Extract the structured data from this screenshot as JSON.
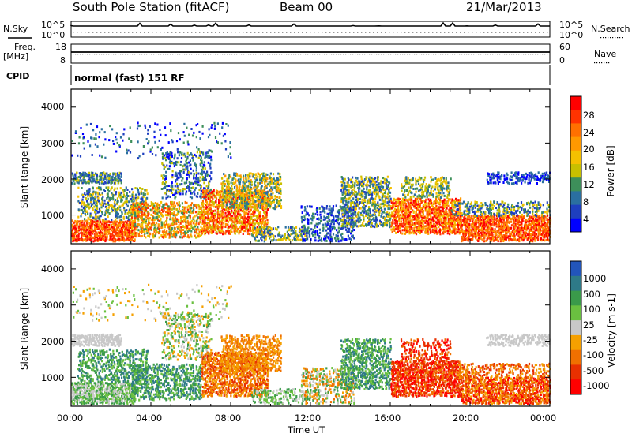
{
  "header": {
    "station": "South Pole Station (fitACF)",
    "beam": "Beam 00",
    "date": "21/Mar/2013"
  },
  "aux": {
    "nsky_label": "N.Sky",
    "nsearch_label": "N.Search",
    "freq_label": "Freq.",
    "freq_unit": "[MHz]",
    "nave_label": "Nave",
    "cpid_label": "CPID",
    "cpid_value": "normal (fast) 151 RF",
    "noise_ticks_left": [
      "10^5",
      "10^0"
    ],
    "noise_ticks_right": [
      "10^5",
      "10^0"
    ],
    "freq_ticks": [
      "18",
      "8"
    ],
    "nave_ticks": [
      "60",
      "0"
    ]
  },
  "chart_data": [
    {
      "type": "heatmap",
      "name": "power",
      "xlabel": "Time UT",
      "ylabel": "Slant Range [km]",
      "xlim": [
        "00:00",
        "24:00"
      ],
      "ylim": [
        200,
        4500
      ],
      "yticks": [
        "4000",
        "3000",
        "2000",
        "1000"
      ],
      "colorbar_label": "Power [dB]",
      "colorbar_ticks": [
        "28",
        "24",
        "20",
        "16",
        "12",
        "8",
        "4"
      ],
      "colorbar_colors": [
        "#ff0000",
        "#ff3300",
        "#ff7000",
        "#ff9900",
        "#f5c000",
        "#c8c000",
        "#3d8f5a",
        "#2a6fa0",
        "#1e3fbf",
        "#0000ff"
      ]
    },
    {
      "type": "heatmap",
      "name": "velocity",
      "xlabel": "Time UT",
      "ylabel": "Slant Range [km]",
      "xlim": [
        "00:00",
        "24:00"
      ],
      "ylim": [
        200,
        4500
      ],
      "yticks": [
        "4000",
        "3000",
        "2000",
        "1000"
      ],
      "colorbar_label": "Velocity [m s-1]",
      "colorbar_ticks": [
        "1000",
        "500",
        "100",
        "25",
        "-25",
        "-100",
        "-500",
        "-1000"
      ],
      "colorbar_colors": [
        "#2255bb",
        "#2e7a88",
        "#3a9a4a",
        "#6ac040",
        "#c8c8c8",
        "#f5a000",
        "#f07000",
        "#e83000",
        "#ff0000"
      ]
    }
  ],
  "xaxis": {
    "ticks": [
      "00:00",
      "04:00",
      "08:00",
      "12:00",
      "16:00",
      "20:00",
      "00:00"
    ],
    "label": "Time UT"
  }
}
